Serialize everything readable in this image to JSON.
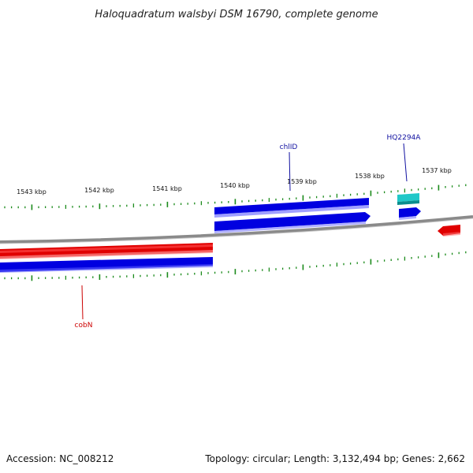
{
  "title": "Haloquadratum walsbyi DSM 16790, complete genome",
  "footer": {
    "accession": "Accession: NC_008212",
    "topology": "Topology: circular; Length: 3,132,494 bp; Genes: 2,662"
  },
  "scale_labels": [
    "1543 kbp",
    "1542 kbp",
    "1541 kbp",
    "1540 kbp",
    "1539 kbp",
    "1538 kbp",
    "1537 kbp"
  ],
  "gene_labels": {
    "chlID": "chlID",
    "HQ2294A": "HQ2294A",
    "cobN": "cobN"
  },
  "colors": {
    "forward_gene": "#0000e0",
    "reverse_gene": "#e00000",
    "rna_gene": "#20c8c8",
    "tick": "#1a8a1a",
    "backbone": "#808080"
  }
}
